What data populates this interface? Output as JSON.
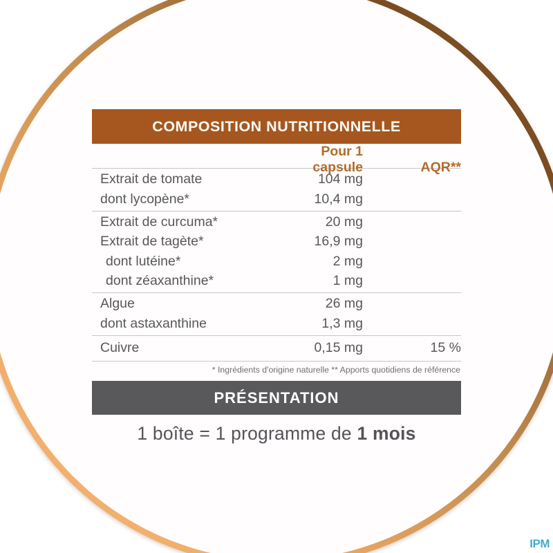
{
  "composition": {
    "title": "COMPOSITION NUTRITIONNELLE",
    "columns": {
      "per_capsule": "Pour 1 capsule",
      "aqr": "AQR**"
    },
    "groups": [
      {
        "rows": [
          {
            "label": "Extrait de tomate",
            "value": "104 mg",
            "aqr": ""
          },
          {
            "label": "dont lycopène*",
            "value": "10,4 mg",
            "aqr": ""
          }
        ]
      },
      {
        "rows": [
          {
            "label": "Extrait de curcuma*",
            "value": "20 mg",
            "aqr": ""
          },
          {
            "label": "Extrait de tagète*",
            "value": "16,9 mg",
            "aqr": ""
          },
          {
            "label": "dont lutéine*",
            "value": "2 mg",
            "aqr": "",
            "indent": true
          },
          {
            "label": "dont zéaxanthine*",
            "value": "1 mg",
            "aqr": "",
            "indent": true
          }
        ]
      },
      {
        "rows": [
          {
            "label": "Algue",
            "value": "26 mg",
            "aqr": ""
          },
          {
            "label": "dont astaxanthine",
            "value": "1,3 mg",
            "aqr": ""
          }
        ]
      },
      {
        "rows": [
          {
            "label": "Cuivre",
            "value": "0,15 mg",
            "aqr": "15 %"
          }
        ]
      }
    ],
    "footnote": "* Ingrédients d'origine naturelle ** Apports quotidiens de référence"
  },
  "presentation": {
    "title": "PRÉSENTATION",
    "line_prefix": "1 boîte = 1 programme de ",
    "line_bold": "1 mois"
  },
  "logo": {
    "text": "IPM"
  },
  "colors": {
    "header_brown": "#a5571f",
    "column_header_text": "#b26c2c",
    "row_text": "#57575b",
    "divider": "#c6c6c6",
    "presentation_bar": "#59585b",
    "background_light": "#dcc095",
    "background_dark": "#c08c55",
    "ring_highlight": "#f5b577",
    "ring_shadow": "#7a4c21",
    "logo_blue": "#47a9ce"
  }
}
